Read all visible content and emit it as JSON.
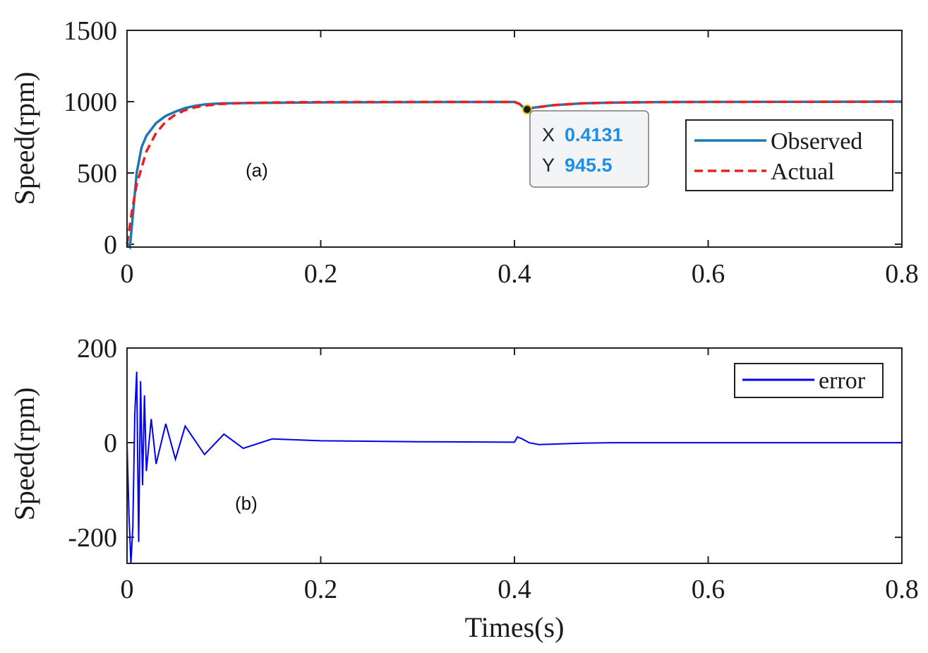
{
  "chart_data": [
    {
      "id": "a",
      "type": "line",
      "annotation": "(a)",
      "xlabel": "",
      "ylabel": "Speed(rpm)",
      "xlim": [
        0,
        0.8
      ],
      "ylim": [
        -20,
        1500
      ],
      "xticks": [
        0,
        0.2,
        0.4,
        0.6,
        0.8
      ],
      "xtick_labels": [
        "0",
        "0.2",
        "0.4",
        "0.6",
        "0.8"
      ],
      "yticks": [
        0,
        500,
        1000,
        1500
      ],
      "ytick_labels": [
        "0",
        "500",
        "1000",
        "1500"
      ],
      "legend_position": "right",
      "series": [
        {
          "name": "Observed",
          "style": "solid",
          "color": "#1f77b4",
          "x": [
            0,
            0.003,
            0.006,
            0.01,
            0.015,
            0.02,
            0.03,
            0.04,
            0.05,
            0.06,
            0.07,
            0.08,
            0.09,
            0.1,
            0.12,
            0.15,
            0.2,
            0.3,
            0.4,
            0.405,
            0.41,
            0.4131,
            0.42,
            0.44,
            0.47,
            0.5,
            0.55,
            0.6,
            0.7,
            0.8
          ],
          "y": [
            0,
            -20,
            200,
            500,
            680,
            760,
            850,
            900,
            930,
            955,
            970,
            980,
            985,
            988,
            990,
            992,
            995,
            997,
            998,
            985,
            955,
            945.5,
            958,
            975,
            988,
            993,
            997,
            998,
            999,
            1000
          ]
        },
        {
          "name": "Actual",
          "style": "dashed",
          "color": "#e8201f",
          "x": [
            0,
            0.005,
            0.01,
            0.02,
            0.03,
            0.04,
            0.05,
            0.06,
            0.07,
            0.08,
            0.1,
            0.12,
            0.15,
            0.2,
            0.3,
            0.4,
            0.405,
            0.41,
            0.4131,
            0.42,
            0.44,
            0.47,
            0.5,
            0.55,
            0.6,
            0.7,
            0.8
          ],
          "y": [
            0,
            230,
            420,
            650,
            780,
            860,
            910,
            940,
            960,
            972,
            985,
            990,
            994,
            997,
            998,
            998,
            985,
            955,
            945.5,
            958,
            975,
            988,
            993,
            997,
            998,
            999,
            1000
          ]
        }
      ],
      "datatip": {
        "x_label": "X",
        "x_value": "0.4131",
        "y_label": "Y",
        "y_value": "945.5",
        "x": 0.4131,
        "y": 945.5
      }
    },
    {
      "id": "b",
      "type": "line",
      "annotation": "(b)",
      "xlabel": "Times(s)",
      "ylabel": "Speed(rpm)",
      "xlim": [
        0,
        0.8
      ],
      "ylim": [
        -255,
        200
      ],
      "xticks": [
        0,
        0.2,
        0.4,
        0.6,
        0.8
      ],
      "xtick_labels": [
        "0",
        "0.2",
        "0.4",
        "0.6",
        "0.8"
      ],
      "yticks": [
        -200,
        0,
        200
      ],
      "ytick_labels": [
        "-200",
        "0",
        "200"
      ],
      "legend_position": "top-right",
      "series": [
        {
          "name": "error",
          "style": "solid",
          "color": "#0000ee",
          "x": [
            0,
            0.002,
            0.004,
            0.006,
            0.008,
            0.01,
            0.012,
            0.014,
            0.016,
            0.018,
            0.02,
            0.025,
            0.03,
            0.04,
            0.05,
            0.06,
            0.08,
            0.1,
            0.12,
            0.15,
            0.2,
            0.3,
            0.4,
            0.403,
            0.408,
            0.415,
            0.425,
            0.44,
            0.47,
            0.5,
            0.6,
            0.7,
            0.8
          ],
          "y": [
            0,
            -150,
            -255,
            -180,
            60,
            150,
            -210,
            130,
            -90,
            100,
            -60,
            50,
            -45,
            40,
            -35,
            35,
            -25,
            18,
            -12,
            8,
            4,
            2,
            1,
            12,
            8,
            0,
            -4,
            -3,
            -1,
            0,
            0,
            0,
            0
          ]
        }
      ]
    }
  ]
}
